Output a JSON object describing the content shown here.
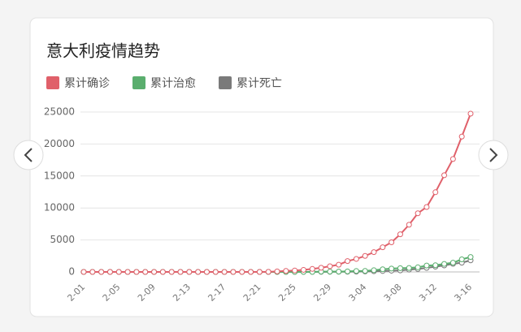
{
  "chart_data": {
    "type": "line",
    "title": "意大利疫情趋势",
    "categories": [
      "2-01",
      null,
      null,
      null,
      "2-05",
      null,
      null,
      null,
      "2-09",
      null,
      null,
      null,
      "2-13",
      null,
      null,
      null,
      "2-17",
      null,
      null,
      null,
      "2-21",
      null,
      null,
      null,
      "2-25",
      null,
      null,
      null,
      "2-29",
      null,
      null,
      null,
      "3-04",
      null,
      null,
      null,
      "3-08",
      null,
      null,
      null,
      "3-12",
      null,
      null,
      null,
      "3-16"
    ],
    "series": [
      {
        "name": "累计确诊",
        "color": "#e0606a",
        "values": [
          2,
          2,
          2,
          2,
          2,
          2,
          3,
          3,
          3,
          3,
          3,
          3,
          3,
          3,
          3,
          3,
          3,
          3,
          3,
          3,
          3,
          20,
          79,
          157,
          229,
          323,
          470,
          655,
          889,
          1128,
          1694,
          2036,
          2502,
          3089,
          3858,
          4636,
          5883,
          7375,
          9172,
          10149,
          12462,
          15113,
          17660,
          21157,
          24747
        ]
      },
      {
        "name": "累计治愈",
        "color": "#5aae6e",
        "values": [
          0,
          0,
          0,
          0,
          0,
          0,
          0,
          0,
          0,
          0,
          0,
          0,
          0,
          0,
          0,
          0,
          0,
          0,
          0,
          0,
          0,
          0,
          0,
          0,
          1,
          1,
          3,
          45,
          46,
          46,
          83,
          149,
          160,
          276,
          414,
          523,
          589,
          622,
          724,
          1004,
          1045,
          1258,
          1439,
          1966,
          2335
        ]
      },
      {
        "name": "累计死亡",
        "color": "#7a7a7a",
        "values": [
          0,
          0,
          0,
          0,
          0,
          0,
          0,
          0,
          0,
          0,
          0,
          0,
          0,
          0,
          0,
          0,
          0,
          0,
          0,
          0,
          0,
          0,
          2,
          3,
          7,
          10,
          12,
          17,
          21,
          29,
          34,
          52,
          79,
          107,
          148,
          197,
          233,
          366,
          463,
          631,
          827,
          1016,
          1266,
          1441,
          1809
        ]
      }
    ],
    "ylim": [
      0,
      25000
    ],
    "yticks": [
      0,
      5000,
      10000,
      15000,
      20000,
      25000
    ],
    "grid": true
  }
}
